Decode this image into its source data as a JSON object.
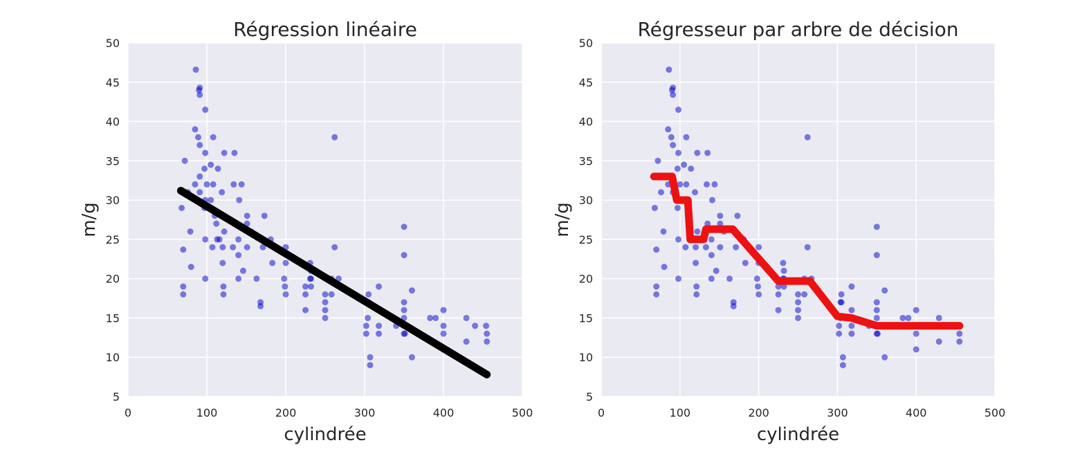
{
  "chart_data": [
    {
      "type": "scatter",
      "title": "Régression linéaire",
      "xlabel": "cylindrée",
      "ylabel": "m/g",
      "xlim": [
        0,
        500
      ],
      "ylim": [
        5,
        50
      ],
      "xticks": [
        0,
        100,
        200,
        300,
        400,
        500
      ],
      "yticks": [
        5,
        10,
        15,
        20,
        25,
        30,
        35,
        40,
        45,
        50
      ],
      "grid": true,
      "series": [
        {
          "mode": "points",
          "color": "#0000cc",
          "opacity": 0.5,
          "x": [
            70,
            70,
            70,
            68,
            72,
            76,
            79,
            80,
            85,
            85,
            86,
            89,
            90,
            91,
            91,
            91,
            91,
            91,
            97,
            97,
            98,
            98,
            98,
            98,
            98,
            100,
            105,
            105,
            107,
            108,
            108,
            110,
            112,
            113,
            114,
            116,
            119,
            120,
            120,
            121,
            121,
            122,
            122,
            133,
            134,
            135,
            135,
            140,
            140,
            140,
            141,
            144,
            146,
            151,
            151,
            151,
            156,
            163,
            168,
            168,
            171,
            173,
            181,
            183,
            198,
            199,
            200,
            200,
            200,
            225,
            225,
            225,
            231,
            231,
            232,
            232,
            232,
            250,
            250,
            250,
            250,
            258,
            258,
            262,
            262,
            267,
            302,
            302,
            304,
            304,
            305,
            305,
            307,
            307,
            318,
            318,
            318,
            318,
            340,
            350,
            350,
            350,
            350,
            350,
            350,
            350,
            351,
            351,
            360,
            360,
            383,
            390,
            400,
            400,
            400,
            400,
            429,
            429,
            440,
            454,
            455,
            455
          ],
          "values": [
            18,
            19,
            23.7,
            29,
            35,
            31,
            26,
            21.5,
            32,
            39,
            46.6,
            38,
            44,
            44.3,
            43.4,
            37,
            33,
            31,
            29,
            34,
            41.5,
            36,
            30,
            20,
            25,
            32,
            34.5,
            30,
            24,
            38,
            32,
            28,
            27,
            25,
            34,
            25,
            31,
            24,
            22,
            19,
            18,
            26,
            36,
            24,
            32,
            36,
            27,
            25,
            23,
            20,
            30,
            32,
            21,
            28,
            24,
            27,
            26,
            20,
            17,
            16.5,
            24,
            28,
            25,
            22,
            20,
            19,
            22,
            18,
            24,
            18,
            19,
            16,
            20,
            22,
            19,
            21,
            20,
            17,
            18,
            16,
            15,
            18,
            20,
            38,
            24,
            20,
            14,
            13,
            17,
            15,
            18,
            17,
            10,
            9,
            14,
            13,
            16,
            19,
            14,
            16,
            15,
            13,
            14,
            17,
            26.6,
            23,
            14,
            13,
            18.5,
            10,
            15,
            15,
            16,
            14,
            13,
            11,
            15,
            12,
            14,
            14,
            12,
            13
          ]
        },
        {
          "mode": "line",
          "color": "#000000",
          "x": [
            67,
            455
          ],
          "values": [
            31.2,
            7.8
          ]
        }
      ]
    },
    {
      "type": "scatter",
      "title": "Régresseur par arbre de décision",
      "xlabel": "cylindrée",
      "ylabel": "m/g",
      "xlim": [
        0,
        500
      ],
      "ylim": [
        5,
        50
      ],
      "xticks": [
        0,
        100,
        200,
        300,
        400,
        500
      ],
      "yticks": [
        5,
        10,
        15,
        20,
        25,
        30,
        35,
        40,
        45,
        50
      ],
      "grid": true,
      "series": [
        {
          "mode": "points",
          "color": "#0000cc",
          "opacity": 0.5,
          "x": [
            70,
            70,
            70,
            68,
            72,
            76,
            79,
            80,
            85,
            85,
            86,
            89,
            90,
            91,
            91,
            91,
            91,
            91,
            97,
            97,
            98,
            98,
            98,
            98,
            98,
            100,
            105,
            105,
            107,
            108,
            108,
            110,
            112,
            113,
            114,
            116,
            119,
            120,
            120,
            121,
            121,
            122,
            122,
            133,
            134,
            135,
            135,
            140,
            140,
            140,
            141,
            144,
            146,
            151,
            151,
            151,
            156,
            163,
            168,
            168,
            171,
            173,
            181,
            183,
            198,
            199,
            200,
            200,
            200,
            225,
            225,
            225,
            231,
            231,
            232,
            232,
            232,
            250,
            250,
            250,
            250,
            258,
            258,
            262,
            262,
            267,
            302,
            302,
            304,
            304,
            305,
            305,
            307,
            307,
            318,
            318,
            318,
            318,
            340,
            350,
            350,
            350,
            350,
            350,
            350,
            350,
            351,
            351,
            360,
            360,
            383,
            390,
            400,
            400,
            400,
            400,
            429,
            429,
            440,
            454,
            455,
            455
          ],
          "values": [
            18,
            19,
            23.7,
            29,
            35,
            31,
            26,
            21.5,
            32,
            39,
            46.6,
            38,
            44,
            44.3,
            43.4,
            37,
            33,
            31,
            29,
            34,
            41.5,
            36,
            30,
            20,
            25,
            32,
            34.5,
            30,
            24,
            38,
            32,
            28,
            27,
            25,
            34,
            25,
            31,
            24,
            22,
            19,
            18,
            26,
            36,
            24,
            32,
            36,
            27,
            25,
            23,
            20,
            30,
            32,
            21,
            28,
            24,
            27,
            26,
            20,
            17,
            16.5,
            24,
            28,
            25,
            22,
            20,
            19,
            22,
            18,
            24,
            18,
            19,
            16,
            20,
            22,
            19,
            21,
            20,
            17,
            18,
            16,
            15,
            18,
            20,
            38,
            24,
            20,
            14,
            13,
            17,
            15,
            18,
            17,
            10,
            9,
            14,
            13,
            16,
            19,
            14,
            16,
            15,
            13,
            14,
            17,
            26.6,
            23,
            14,
            13,
            18.5,
            10,
            15,
            15,
            16,
            14,
            13,
            11,
            15,
            12,
            14,
            14,
            12,
            13
          ]
        },
        {
          "mode": "line",
          "color": "#ee1111",
          "x": [
            67,
            90,
            96,
            110,
            113,
            130,
            133,
            167,
            225,
            265,
            300,
            318,
            350,
            455
          ],
          "values": [
            33,
            33,
            30,
            30,
            25,
            25,
            26.3,
            26.3,
            19.7,
            19.7,
            15.2,
            15,
            14,
            14
          ]
        }
      ]
    }
  ]
}
